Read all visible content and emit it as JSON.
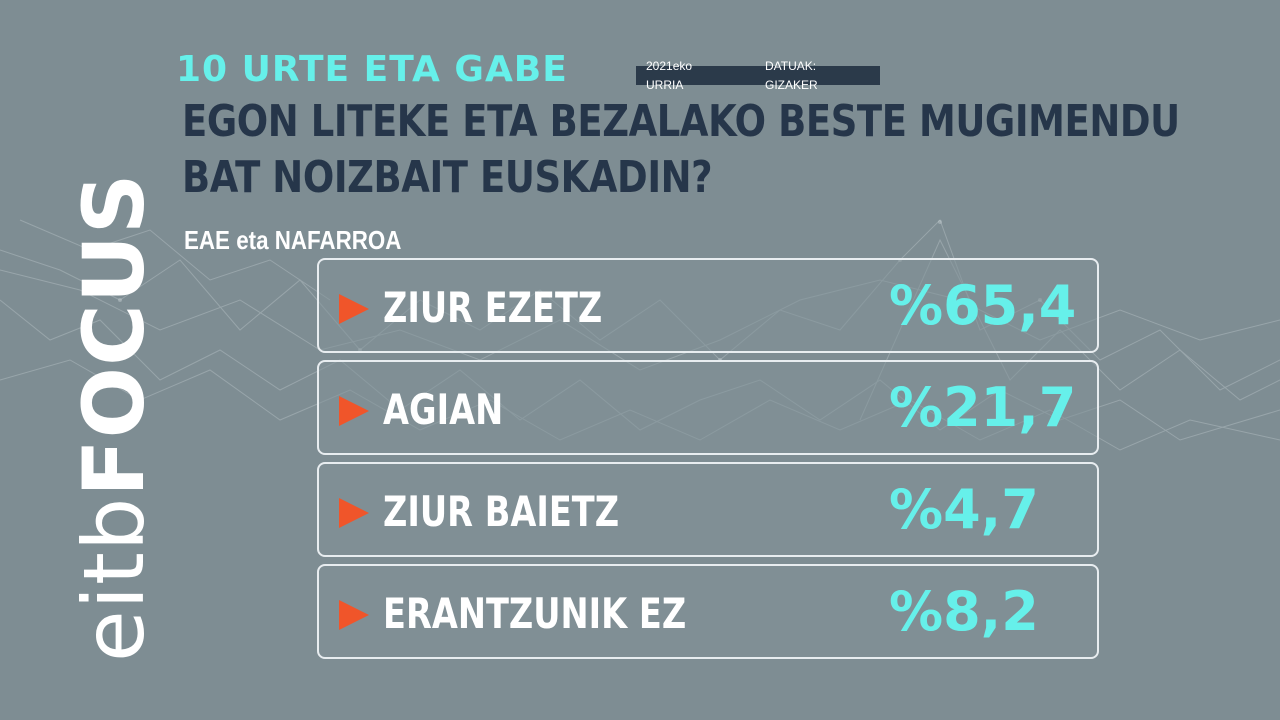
{
  "header": {
    "kicker": "10 URTE ETA GABE",
    "date": "2021eko URRIA",
    "source": "DATUAK: GIZAKER"
  },
  "question": {
    "line1": "EGON LITEKE ETA BEZALAKO BESTE MUGIMENDU",
    "line2": "BAT NOIZBAIT EUSKADIN?"
  },
  "region": "EAE eta NAFARROA",
  "logo": {
    "part1": "eitb",
    "part2": "FOCUS"
  },
  "results": [
    {
      "label": "ZIUR EZETZ",
      "value": "%65,4"
    },
    {
      "label": "AGIAN",
      "value": "%21,7"
    },
    {
      "label": "ZIUR BAIETZ",
      "value": "%4,7"
    },
    {
      "label": "ERANTZUNIK EZ",
      "value": "%8,2"
    }
  ],
  "colors": {
    "background": "#7e8d93",
    "accent_cyan": "#66f0ea",
    "question_text": "#26364a",
    "arrow": "#f0552a"
  },
  "icons": [
    "play-arrow-icon"
  ]
}
